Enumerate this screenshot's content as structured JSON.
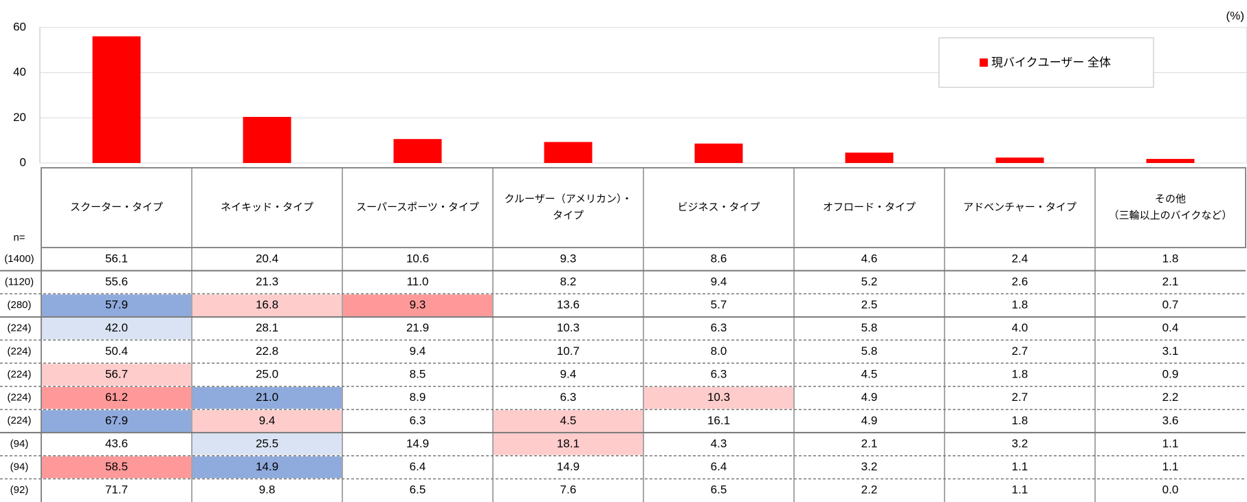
{
  "chart_data": {
    "type": "bar",
    "unit": "(%)",
    "legend": "現バイクユーザー 全体",
    "color": "#ff0000",
    "categories": [
      "スクーター・タイプ",
      "ネイキッド・タイプ",
      "スーパースポーツ・タイプ",
      "クルーザー（アメリカン）・\nタイプ",
      "ビジネス・タイプ",
      "オフロード・タイプ",
      "アドベンチャー・タイプ",
      "その他\n（三輪以上のバイクなど）"
    ],
    "values": [
      56.1,
      20.4,
      10.6,
      9.3,
      8.6,
      4.6,
      2.4,
      1.8
    ],
    "ylim": [
      0,
      60
    ],
    "yticks": [
      0,
      20,
      40,
      60
    ],
    "grid": true
  },
  "table": {
    "n_header": "n=",
    "n_labels": [
      "(1400)",
      "(1120)",
      "(280)",
      "(224)",
      "(224)",
      "(224)",
      "(224)",
      "(224)",
      "(94)",
      "(94)",
      "(92)"
    ],
    "rows": [
      [
        "55.6",
        "21.3",
        "11.0",
        "8.2",
        "9.4",
        "5.2",
        "2.6",
        "2.1"
      ],
      [
        "57.9",
        "16.8",
        "9.3",
        "13.6",
        "5.7",
        "2.5",
        "1.8",
        "0.7"
      ],
      [
        "42.0",
        "28.1",
        "21.9",
        "10.3",
        "6.3",
        "5.8",
        "4.0",
        "0.4"
      ],
      [
        "50.4",
        "22.8",
        "9.4",
        "10.7",
        "8.0",
        "5.8",
        "2.7",
        "3.1"
      ],
      [
        "56.7",
        "25.0",
        "8.5",
        "9.4",
        "6.3",
        "4.5",
        "1.8",
        "0.9"
      ],
      [
        "61.2",
        "21.0",
        "8.9",
        "6.3",
        "10.3",
        "4.9",
        "2.7",
        "2.2"
      ],
      [
        "67.9",
        "9.4",
        "6.3",
        "4.5",
        "16.1",
        "4.9",
        "1.8",
        "3.6"
      ],
      [
        "43.6",
        "25.5",
        "14.9",
        "18.1",
        "4.3",
        "2.1",
        "3.2",
        "1.1"
      ],
      [
        "58.5",
        "14.9",
        "6.4",
        "14.9",
        "6.4",
        "3.2",
        "1.1",
        "1.1"
      ],
      [
        "71.7",
        "9.8",
        "6.5",
        "7.6",
        "6.5",
        "2.2",
        "1.1",
        "0.0"
      ]
    ],
    "fills": [
      [
        null,
        null,
        null,
        null,
        null,
        null,
        null,
        null
      ],
      [
        null,
        null,
        null,
        null,
        null,
        null,
        null,
        null
      ],
      [
        "#8faadc",
        "#ffcccc",
        "#ff9999",
        null,
        null,
        null,
        null,
        null
      ],
      [
        "#dae3f3",
        null,
        null,
        null,
        null,
        null,
        null,
        null
      ],
      [
        null,
        null,
        null,
        null,
        null,
        null,
        null,
        null
      ],
      [
        "#ffcccc",
        null,
        null,
        null,
        null,
        null,
        null,
        null
      ],
      [
        "#ff9999",
        "#8faadc",
        null,
        null,
        "#ffcccc",
        null,
        null,
        null
      ],
      [
        "#8faadc",
        "#ffcccc",
        null,
        "#ffcccc",
        null,
        null,
        null,
        null
      ],
      [
        null,
        "#dae3f3",
        null,
        "#ffcccc",
        null,
        null,
        null,
        null
      ],
      [
        "#ff9999",
        "#8faadc",
        null,
        null,
        null,
        null,
        null,
        null
      ]
    ]
  }
}
